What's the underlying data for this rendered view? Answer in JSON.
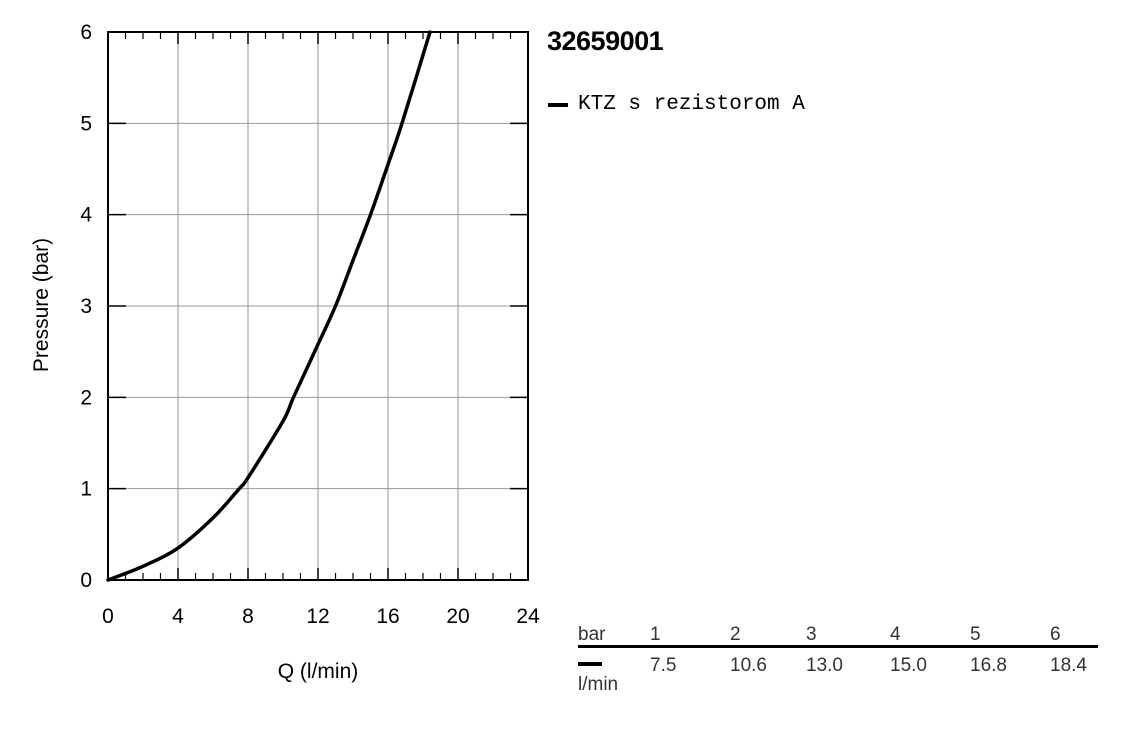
{
  "product": {
    "code": "32659001"
  },
  "legend": {
    "entries": [
      {
        "label": "KTZ s rezistorom A",
        "color": "#000000"
      }
    ]
  },
  "chart_data": {
    "type": "line",
    "title": "",
    "xlabel": "Q (l/min)",
    "ylabel": "Pressure (bar)",
    "xlim": [
      0,
      24
    ],
    "ylim": [
      0,
      6
    ],
    "xticks": [
      0,
      4,
      8,
      12,
      16,
      20,
      24
    ],
    "yticks": [
      0,
      1,
      2,
      3,
      4,
      5,
      6
    ],
    "grid": true,
    "legend_position": "right",
    "series": [
      {
        "name": "KTZ s rezistorom A",
        "color": "#000000",
        "x": [
          0,
          2,
          4,
          6,
          7.5,
          8,
          10,
          10.6,
          12,
          13.0,
          14,
          15.0,
          16,
          16.8,
          18.4
        ],
        "y": [
          0,
          0.15,
          0.35,
          0.68,
          1.0,
          1.12,
          1.74,
          2.0,
          2.58,
          3.0,
          3.5,
          4.0,
          4.55,
          5.0,
          6.0
        ]
      }
    ]
  },
  "flow_table": {
    "header_label": "bar",
    "unit_label": "l/min",
    "pressures": [
      "1",
      "2",
      "3",
      "4",
      "5",
      "6"
    ],
    "flows": [
      "7.5",
      "10.6",
      "13.0",
      "15.0",
      "16.8",
      "18.4"
    ]
  }
}
